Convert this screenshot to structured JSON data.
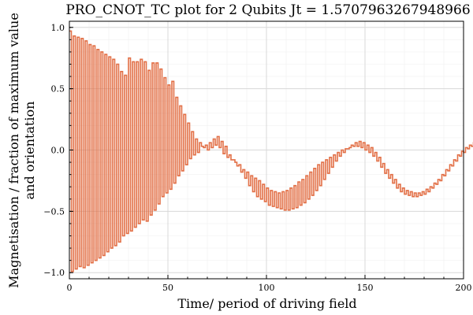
{
  "chart_data": {
    "type": "line",
    "title": "PRO_CNOT_TC plot for 2 Qubits Jt = 1.5707963267948966",
    "xlabel": "Time/ period of driving field",
    "ylabel_lines": [
      "Magnetisation / fraction of maximum value",
      "and orientation"
    ],
    "xlim": [
      0,
      200
    ],
    "ylim": [
      -1.05,
      1.05
    ],
    "xticks": [
      0,
      50,
      100,
      150,
      200
    ],
    "xtick_labels": [
      "0",
      "50",
      "100",
      "150",
      "200"
    ],
    "yticks": [
      -1.0,
      -0.5,
      0.0,
      0.5,
      1.0
    ],
    "ytick_labels": [
      "−1.0",
      "−0.5",
      "0.0",
      "0.5",
      "1.0"
    ],
    "grid": true,
    "step": 1,
    "series": [
      {
        "color": "#e26f46",
        "values": [
          0.97,
          -0.99,
          0.93,
          -0.97,
          0.92,
          -0.95,
          0.91,
          -0.96,
          0.89,
          -0.94,
          0.86,
          -0.92,
          0.85,
          -0.9,
          0.82,
          -0.88,
          0.8,
          -0.86,
          0.78,
          -0.83,
          0.76,
          -0.8,
          0.74,
          -0.78,
          0.7,
          -0.75,
          0.64,
          -0.7,
          0.61,
          -0.68,
          0.75,
          -0.66,
          0.72,
          -0.63,
          0.72,
          -0.6,
          0.74,
          -0.57,
          0.72,
          -0.58,
          0.65,
          -0.53,
          0.71,
          -0.49,
          0.71,
          -0.44,
          0.66,
          -0.38,
          0.59,
          -0.35,
          0.53,
          -0.32,
          0.56,
          -0.27,
          0.43,
          -0.21,
          0.36,
          -0.17,
          0.29,
          -0.12,
          0.22,
          -0.07,
          0.15,
          -0.04,
          0.09,
          -0.02,
          0.06,
          0.03,
          0.02,
          0.04,
          0.0,
          0.06,
          0.02,
          0.09,
          0.04,
          0.11,
          0.02,
          0.07,
          -0.03,
          0.03,
          -0.06,
          -0.04,
          -0.08,
          -0.08,
          -0.1,
          -0.13,
          -0.12,
          -0.18,
          -0.16,
          -0.23,
          -0.18,
          -0.29,
          -0.21,
          -0.34,
          -0.23,
          -0.38,
          -0.25,
          -0.4,
          -0.28,
          -0.42,
          -0.31,
          -0.45,
          -0.33,
          -0.46,
          -0.34,
          -0.47,
          -0.35,
          -0.48,
          -0.34,
          -0.49,
          -0.33,
          -0.49,
          -0.31,
          -0.48,
          -0.29,
          -0.47,
          -0.26,
          -0.45,
          -0.24,
          -0.43,
          -0.21,
          -0.4,
          -0.18,
          -0.37,
          -0.15,
          -0.33,
          -0.12,
          -0.29,
          -0.1,
          -0.24,
          -0.08,
          -0.19,
          -0.06,
          -0.14,
          -0.04,
          -0.09,
          -0.02,
          -0.05,
          0.0,
          -0.02,
          0.01,
          0.01,
          0.02,
          0.04,
          0.03,
          0.06,
          0.03,
          0.07,
          0.02,
          0.06,
          0.0,
          0.04,
          -0.02,
          0.02,
          -0.05,
          -0.02,
          -0.09,
          -0.06,
          -0.14,
          -0.11,
          -0.19,
          -0.16,
          -0.23,
          -0.2,
          -0.27,
          -0.24,
          -0.31,
          -0.28,
          -0.34,
          -0.31,
          -0.36,
          -0.33,
          -0.37,
          -0.34,
          -0.38,
          -0.35,
          -0.38,
          -0.35,
          -0.37,
          -0.34,
          -0.36,
          -0.32,
          -0.34,
          -0.3,
          -0.31,
          -0.27,
          -0.28,
          -0.24,
          -0.25,
          -0.2,
          -0.21,
          -0.16,
          -0.17,
          -0.12,
          -0.13,
          -0.08,
          -0.09,
          -0.04,
          -0.05,
          -0.01,
          -0.02,
          0.02,
          0.01,
          0.04,
          0.03,
          0.06
        ]
      }
    ]
  }
}
